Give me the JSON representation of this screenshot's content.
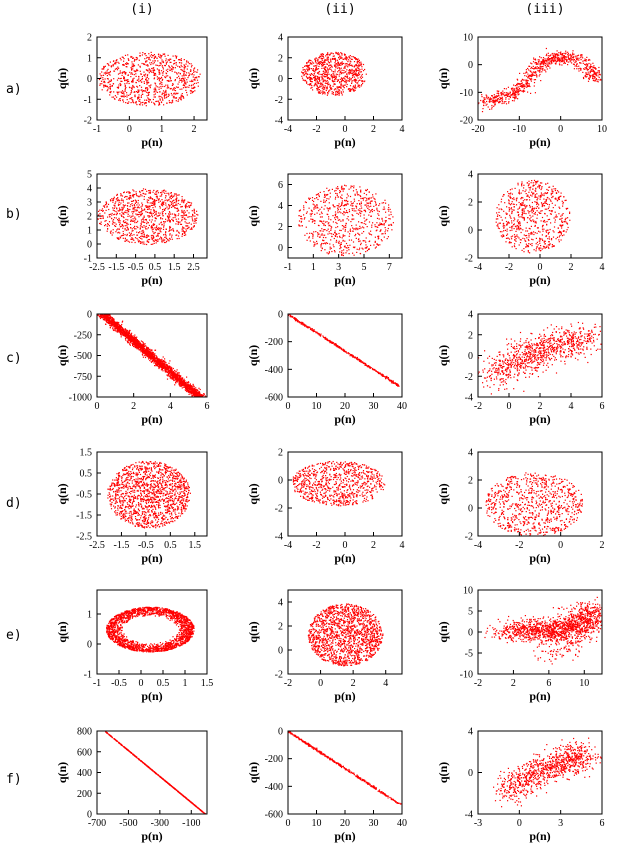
{
  "figure": {
    "columns": [
      "(i)",
      "(ii)",
      "(iii)"
    ],
    "rows": [
      "a)",
      "b)",
      "c)",
      "d)",
      "e)",
      "f)"
    ]
  },
  "chart_data": [
    {
      "id": "a-i",
      "type": "scatter",
      "shape": "ellipse",
      "center": [
        0.6,
        0.0
      ],
      "radii": [
        1.6,
        1.3
      ],
      "n": 900,
      "xlabel": "p(n)",
      "ylabel": "q(n)",
      "xlim": [
        -1,
        2.4
      ],
      "ylim": [
        -2,
        2
      ],
      "xticks": [
        -1,
        0,
        1,
        2
      ],
      "yticks": [
        -2,
        -1,
        0,
        1,
        2
      ]
    },
    {
      "id": "a-ii",
      "type": "scatter",
      "shape": "ellipse",
      "center": [
        -0.8,
        0.5
      ],
      "radii": [
        2.3,
        2.1
      ],
      "n": 800,
      "xlabel": "p(n)",
      "ylabel": "q(n)",
      "xlim": [
        -4,
        4
      ],
      "ylim": [
        -4,
        4
      ],
      "xticks": [
        -4,
        -2,
        0,
        2,
        4
      ],
      "yticks": [
        -4,
        -2,
        0,
        2,
        4
      ]
    },
    {
      "id": "a-iii",
      "type": "scatter",
      "shape": "trail",
      "path": [
        [
          -19,
          -14
        ],
        [
          -15,
          -12
        ],
        [
          -11,
          -10
        ],
        [
          -9,
          -7
        ],
        [
          -6,
          -1
        ],
        [
          -3,
          2
        ],
        [
          0,
          3
        ],
        [
          4,
          2
        ],
        [
          7,
          -2
        ],
        [
          9,
          -5
        ]
      ],
      "spread": 2,
      "n": 800,
      "xlabel": "p(n)",
      "ylabel": "q(n)",
      "xlim": [
        -20,
        10
      ],
      "ylim": [
        -20,
        10
      ],
      "xticks": [
        -20,
        -10,
        0,
        10
      ],
      "yticks": [
        -20,
        -10,
        0,
        10
      ]
    },
    {
      "id": "b-i",
      "type": "scatter",
      "shape": "ellipse",
      "center": [
        0.1,
        2.0
      ],
      "radii": [
        2.6,
        2.0
      ],
      "n": 1000,
      "xlabel": "p(n)",
      "ylabel": "q(n)",
      "xlim": [
        -2.5,
        3.2
      ],
      "ylim": [
        -1,
        5
      ],
      "xticks": [
        -2.5,
        -1.5,
        -0.5,
        0.5,
        1.5,
        2.5
      ],
      "yticks": [
        -1,
        0,
        1,
        2,
        3,
        4,
        5
      ]
    },
    {
      "id": "b-ii",
      "type": "scatter",
      "shape": "ellipse",
      "center": [
        3.5,
        2.6
      ],
      "radii": [
        3.8,
        3.4
      ],
      "n": 700,
      "xlabel": "p(n)",
      "ylabel": "q(n)",
      "xlim": [
        -1,
        8
      ],
      "ylim": [
        -1,
        7
      ],
      "xticks": [
        -1,
        1,
        3,
        5,
        7
      ],
      "yticks": [
        0,
        2,
        4,
        6
      ]
    },
    {
      "id": "b-iii",
      "type": "scatter",
      "shape": "ellipse",
      "center": [
        -0.5,
        1.0
      ],
      "radii": [
        2.4,
        2.6
      ],
      "n": 700,
      "xlabel": "p(n)",
      "ylabel": "q(n)",
      "xlim": [
        -4,
        4
      ],
      "ylim": [
        -2,
        4
      ],
      "xticks": [
        -4,
        -2,
        0,
        2,
        4
      ],
      "yticks": [
        -2,
        0,
        2,
        4
      ]
    },
    {
      "id": "c-i",
      "type": "scatter",
      "shape": "band",
      "from": [
        0.3,
        0
      ],
      "to": [
        5.6,
        -1000
      ],
      "spread": 0.35,
      "n": 2200,
      "xlabel": "p(n)",
      "ylabel": "q(n)",
      "xlim": [
        0,
        6
      ],
      "ylim": [
        -1000,
        0
      ],
      "xticks": [
        0,
        2,
        4,
        6
      ],
      "yticks": [
        -1000,
        -750,
        -500,
        -250,
        0
      ]
    },
    {
      "id": "c-ii",
      "type": "scatter",
      "shape": "band",
      "from": [
        0,
        0
      ],
      "to": [
        39,
        -520
      ],
      "spread": 0.6,
      "n": 400,
      "xlabel": "p(n)",
      "ylabel": "q(n)",
      "xlim": [
        0,
        40
      ],
      "ylim": [
        -600,
        0
      ],
      "xticks": [
        0,
        10,
        20,
        30,
        40
      ],
      "yticks": [
        -600,
        -400,
        -200,
        0
      ]
    },
    {
      "id": "c-iii",
      "type": "scatter",
      "shape": "trail",
      "path": [
        [
          -1,
          -2
        ],
        [
          0,
          -1
        ],
        [
          1,
          0
        ],
        [
          2,
          0.5
        ],
        [
          3,
          1
        ],
        [
          4,
          1.5
        ],
        [
          5,
          1.7
        ]
      ],
      "spread": 1.3,
      "n": 900,
      "xlabel": "p(n)",
      "ylabel": "q(n)",
      "xlim": [
        -2,
        6
      ],
      "ylim": [
        -4,
        4
      ],
      "xticks": [
        -2,
        0,
        2,
        4,
        6
      ],
      "yticks": [
        -4,
        -2,
        0,
        2,
        4
      ]
    },
    {
      "id": "d-i",
      "type": "scatter",
      "shape": "ellipse",
      "center": [
        -0.4,
        -0.5
      ],
      "radii": [
        1.7,
        1.6
      ],
      "n": 1400,
      "xlabel": "p(n)",
      "ylabel": "q(n)",
      "xlim": [
        -2.5,
        2
      ],
      "ylim": [
        -2.5,
        1.5
      ],
      "xticks": [
        -2.5,
        -1.5,
        -0.5,
        0.5,
        1.5
      ],
      "yticks": [
        -2.5,
        -1.5,
        -0.5,
        0.5,
        1.5
      ]
    },
    {
      "id": "d-ii",
      "type": "scatter",
      "shape": "ellipse",
      "center": [
        -0.5,
        -0.2
      ],
      "radii": [
        3.3,
        1.6
      ],
      "n": 800,
      "xlabel": "p(n)",
      "ylabel": "q(n)",
      "xlim": [
        -4,
        4
      ],
      "ylim": [
        -4,
        2
      ],
      "xticks": [
        -4,
        -2,
        0,
        2,
        4
      ],
      "yticks": [
        -4,
        -2,
        0,
        2
      ]
    },
    {
      "id": "d-iii",
      "type": "scatter",
      "shape": "ellipse",
      "center": [
        -1.3,
        0.3
      ],
      "radii": [
        2.4,
        2.3
      ],
      "n": 800,
      "xlabel": "p(n)",
      "ylabel": "q(n)",
      "xlim": [
        -4,
        2
      ],
      "ylim": [
        -2,
        4
      ],
      "xticks": [
        -4,
        -2,
        0,
        2
      ],
      "yticks": [
        -2,
        0,
        2,
        4
      ]
    },
    {
      "id": "e-i",
      "type": "scatter",
      "shape": "ring",
      "center": [
        0.2,
        0.5
      ],
      "radii": [
        1.0,
        0.75
      ],
      "inner": 0.6,
      "n": 2000,
      "xlabel": "p(n)",
      "ylabel": "q(n)",
      "xlim": [
        -1,
        1.5
      ],
      "ylim": [
        -1,
        1.8
      ],
      "xticks": [
        -1,
        -0.5,
        0,
        0.5,
        1,
        1.5
      ],
      "yticks": [
        -1,
        0,
        1
      ]
    },
    {
      "id": "e-ii",
      "type": "scatter",
      "shape": "ellipse",
      "center": [
        1.5,
        1.3
      ],
      "radii": [
        2.3,
        2.6
      ],
      "n": 1500,
      "xlabel": "p(n)",
      "ylabel": "q(n)",
      "xlim": [
        -2,
        5
      ],
      "ylim": [
        -2,
        5
      ],
      "xticks": [
        -2,
        0,
        2,
        4
      ],
      "yticks": [
        -2,
        0,
        2,
        4
      ]
    },
    {
      "id": "e-iii",
      "type": "scatter",
      "shape": "trail",
      "path": [
        [
          1,
          0
        ],
        [
          4,
          1
        ],
        [
          6,
          0
        ],
        [
          8,
          1
        ],
        [
          10,
          2
        ],
        [
          11,
          6
        ],
        [
          6,
          -6
        ]
      ],
      "spread": 2.2,
      "n": 1500,
      "xlabel": "p(n)",
      "ylabel": "q(n)",
      "xlim": [
        -2,
        12
      ],
      "ylim": [
        -10,
        10
      ],
      "xticks": [
        -2,
        2,
        6,
        10
      ],
      "yticks": [
        -10,
        -5,
        0,
        5,
        10
      ]
    },
    {
      "id": "f-i",
      "type": "scatter",
      "shape": "band",
      "from": [
        -650,
        800
      ],
      "to": [
        -10,
        0
      ],
      "spread": 1,
      "n": 600,
      "xlabel": "p(n)",
      "ylabel": "q(n)",
      "xlim": [
        -700,
        0
      ],
      "ylim": [
        0,
        800
      ],
      "xticks": [
        -700,
        -500,
        -300,
        -100
      ],
      "yticks": [
        0,
        200,
        400,
        600,
        800
      ]
    },
    {
      "id": "f-ii",
      "type": "scatter",
      "shape": "band",
      "from": [
        0,
        0
      ],
      "to": [
        39,
        -525
      ],
      "spread": 0.6,
      "n": 400,
      "xlabel": "p(n)",
      "ylabel": "q(n)",
      "xlim": [
        0,
        40
      ],
      "ylim": [
        -600,
        0
      ],
      "xticks": [
        0,
        10,
        20,
        30,
        40
      ],
      "yticks": [
        -600,
        -400,
        -200,
        0
      ]
    },
    {
      "id": "f-iii",
      "type": "scatter",
      "shape": "trail",
      "path": [
        [
          -1,
          -2
        ],
        [
          0,
          -1
        ],
        [
          1,
          0
        ],
        [
          2,
          0.5
        ],
        [
          3,
          1
        ],
        [
          4,
          1.5
        ],
        [
          5,
          1.8
        ]
      ],
      "spread": 1.1,
      "n": 900,
      "xlabel": "p(n)",
      "ylabel": "q(n)",
      "xlim": [
        -3,
        6
      ],
      "ylim": [
        -4,
        4
      ],
      "xticks": [
        -3,
        0,
        3,
        6
      ],
      "yticks": [
        -4,
        0,
        4
      ]
    }
  ],
  "colors": {
    "points": "#ff0000",
    "axes": "#000000"
  }
}
